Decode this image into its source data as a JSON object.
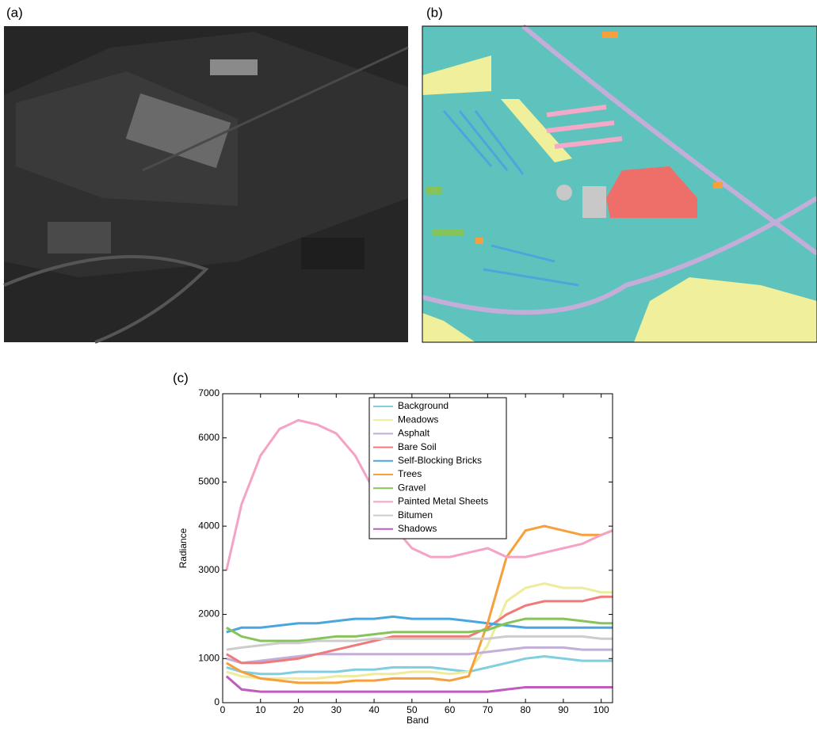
{
  "panel_labels": [
    "(a)",
    "(b)",
    "(c)"
  ],
  "chart_data": {
    "type": "line",
    "xlabel": "Band",
    "ylabel": "Radiance",
    "x": [
      1,
      5,
      10,
      15,
      20,
      25,
      30,
      35,
      40,
      45,
      50,
      55,
      60,
      65,
      70,
      75,
      80,
      85,
      90,
      95,
      100,
      103
    ],
    "xlim": [
      0,
      103
    ],
    "xticks": [
      0,
      10,
      20,
      30,
      40,
      50,
      60,
      70,
      80,
      90,
      100
    ],
    "ylim": [
      0,
      7000
    ],
    "yticks": [
      0,
      1000,
      2000,
      3000,
      4000,
      5000,
      6000,
      7000
    ],
    "legend": "upper center",
    "series": [
      {
        "name": "Background",
        "color": "#7fcfe0",
        "values": [
          800,
          700,
          650,
          650,
          700,
          700,
          700,
          750,
          750,
          800,
          800,
          800,
          750,
          700,
          800,
          900,
          1000,
          1050,
          1000,
          950,
          950,
          950
        ]
      },
      {
        "name": "Meadows",
        "color": "#eeec9a",
        "values": [
          700,
          600,
          550,
          550,
          550,
          550,
          600,
          600,
          650,
          650,
          700,
          700,
          650,
          700,
          1300,
          2300,
          2600,
          2700,
          2600,
          2600,
          2500,
          2500
        ]
      },
      {
        "name": "Asphalt",
        "color": "#c2aed8",
        "values": [
          1000,
          900,
          950,
          1000,
          1050,
          1100,
          1100,
          1100,
          1100,
          1100,
          1100,
          1100,
          1100,
          1100,
          1150,
          1200,
          1250,
          1250,
          1250,
          1200,
          1200,
          1200
        ]
      },
      {
        "name": "Bare Soil",
        "color": "#f07a7a",
        "values": [
          1100,
          900,
          900,
          950,
          1000,
          1100,
          1200,
          1300,
          1400,
          1500,
          1500,
          1500,
          1500,
          1500,
          1700,
          2000,
          2200,
          2300,
          2300,
          2300,
          2400,
          2400
        ]
      },
      {
        "name": "Self-Blocking Bricks",
        "color": "#4aa6dc",
        "values": [
          1600,
          1700,
          1700,
          1750,
          1800,
          1800,
          1850,
          1900,
          1900,
          1950,
          1900,
          1900,
          1900,
          1850,
          1800,
          1750,
          1700,
          1700,
          1700,
          1700,
          1700,
          1700
        ]
      },
      {
        "name": "Trees",
        "color": "#f5a03c",
        "values": [
          900,
          700,
          550,
          500,
          450,
          450,
          450,
          500,
          500,
          550,
          550,
          550,
          500,
          600,
          1800,
          3300,
          3900,
          4000,
          3900,
          3800,
          3800,
          3900
        ]
      },
      {
        "name": "Gravel",
        "color": "#86c45a",
        "values": [
          1700,
          1500,
          1400,
          1400,
          1400,
          1450,
          1500,
          1500,
          1550,
          1600,
          1600,
          1600,
          1600,
          1600,
          1650,
          1800,
          1900,
          1900,
          1900,
          1850,
          1800,
          1800
        ]
      },
      {
        "name": "Painted Metal Sheets",
        "color": "#f4a2c6",
        "values": [
          3000,
          4500,
          5600,
          6200,
          6400,
          6300,
          6100,
          5600,
          4800,
          4000,
          3500,
          3300,
          3300,
          3400,
          3500,
          3300,
          3300,
          3400,
          3500,
          3600,
          3800,
          3900
        ]
      },
      {
        "name": "Bitumen",
        "color": "#cccccc",
        "values": [
          1200,
          1250,
          1300,
          1350,
          1350,
          1400,
          1400,
          1400,
          1450,
          1450,
          1450,
          1450,
          1450,
          1450,
          1450,
          1500,
          1500,
          1500,
          1500,
          1500,
          1450,
          1450
        ]
      },
      {
        "name": "Shadows",
        "color": "#c05cbf",
        "values": [
          600,
          300,
          250,
          250,
          250,
          250,
          250,
          250,
          250,
          250,
          250,
          250,
          250,
          250,
          250,
          300,
          350,
          350,
          350,
          350,
          350,
          350
        ]
      }
    ]
  }
}
